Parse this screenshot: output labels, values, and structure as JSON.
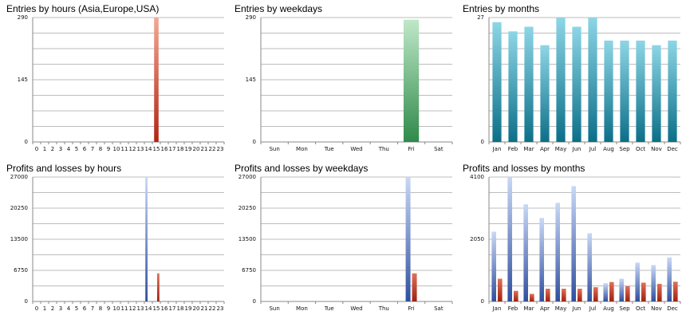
{
  "colors": {
    "grid": "#bdbdbd",
    "entries_hours": [
      "#f3a895",
      "#b32311"
    ],
    "entries_weekdays": [
      "#bfe8c8",
      "#2f8a4a"
    ],
    "entries_months": [
      "#8dd6e6",
      "#0b6f88"
    ],
    "profit": [
      "#c9d8f6",
      "#2f4f9e"
    ],
    "loss": [
      "#e0705a",
      "#a0210f"
    ]
  },
  "chart_data": [
    {
      "id": "entries-hours",
      "type": "bar",
      "title": "Entries by hours (Asia,Europe,USA)",
      "categories": [
        "0",
        "1",
        "2",
        "3",
        "4",
        "5",
        "6",
        "7",
        "8",
        "9",
        "10",
        "11",
        "12",
        "13",
        "14",
        "15",
        "16",
        "17",
        "18",
        "19",
        "20",
        "21",
        "22",
        "23"
      ],
      "y_ticks": [
        "0",
        "145",
        "290"
      ],
      "ylim": [
        0,
        290
      ],
      "series": [
        {
          "values": [
            0,
            0,
            0,
            0,
            0,
            0,
            0,
            0,
            0,
            0,
            0,
            0,
            0,
            0,
            0,
            290,
            0,
            0,
            0,
            0,
            0,
            0,
            0,
            0
          ],
          "color_key": "entries_hours"
        }
      ]
    },
    {
      "id": "entries-weekdays",
      "type": "bar",
      "title": "Entries by weekdays",
      "categories": [
        "Sun",
        "Mon",
        "Tue",
        "Wed",
        "Thu",
        "Fri",
        "Sat"
      ],
      "y_ticks": [
        "0",
        "145",
        "290"
      ],
      "ylim": [
        0,
        290
      ],
      "series": [
        {
          "values": [
            0,
            0,
            0,
            0,
            0,
            285,
            0
          ],
          "color_key": "entries_weekdays"
        }
      ]
    },
    {
      "id": "entries-months",
      "type": "bar",
      "title": "Entries by months",
      "categories": [
        "Jan",
        "Feb",
        "Mar",
        "Apr",
        "May",
        "Jun",
        "Jul",
        "Aug",
        "Sep",
        "Oct",
        "Nov",
        "Dec"
      ],
      "y_ticks": [
        "0",
        "27"
      ],
      "ylim": [
        0,
        27
      ],
      "series": [
        {
          "values": [
            26,
            24,
            25,
            21,
            27,
            25,
            27,
            22,
            22,
            22,
            21,
            22
          ],
          "color_key": "entries_months"
        }
      ]
    },
    {
      "id": "pl-hours",
      "type": "bar",
      "title": "Profits and losses by hours",
      "categories": [
        "0",
        "1",
        "2",
        "3",
        "4",
        "5",
        "6",
        "7",
        "8",
        "9",
        "10",
        "11",
        "12",
        "13",
        "14",
        "15",
        "16",
        "17",
        "18",
        "19",
        "20",
        "21",
        "22",
        "23"
      ],
      "y_ticks": [
        "0",
        "6750",
        "13500",
        "20250",
        "27000"
      ],
      "ylim": [
        0,
        27000
      ],
      "series": [
        {
          "values": [
            0,
            0,
            0,
            0,
            0,
            0,
            0,
            0,
            0,
            0,
            0,
            0,
            0,
            0,
            27000,
            0,
            0,
            0,
            0,
            0,
            0,
            0,
            0,
            0
          ],
          "color_key": "profit"
        },
        {
          "values": [
            0,
            0,
            0,
            0,
            0,
            0,
            0,
            0,
            0,
            0,
            0,
            0,
            0,
            0,
            0,
            6100,
            0,
            0,
            0,
            0,
            0,
            0,
            0,
            0
          ],
          "color_key": "loss"
        }
      ]
    },
    {
      "id": "pl-weekdays",
      "type": "bar",
      "title": "Profits and losses by weekdays",
      "categories": [
        "Sun",
        "Mon",
        "Tue",
        "Wed",
        "Thu",
        "Fri",
        "Sat"
      ],
      "y_ticks": [
        "0",
        "6750",
        "13500",
        "20250",
        "27000"
      ],
      "ylim": [
        0,
        27000
      ],
      "series": [
        {
          "values": [
            0,
            0,
            0,
            0,
            0,
            27000,
            0
          ],
          "color_key": "profit"
        },
        {
          "values": [
            0,
            0,
            0,
            0,
            0,
            6100,
            0
          ],
          "color_key": "loss"
        }
      ]
    },
    {
      "id": "pl-months",
      "type": "bar",
      "title": "Profits and losses by months",
      "categories": [
        "Jan",
        "Feb",
        "Mar",
        "Apr",
        "May",
        "Jun",
        "Jul",
        "Aug",
        "Sep",
        "Oct",
        "Nov",
        "Dec"
      ],
      "y_ticks": [
        "0",
        "2050",
        "4100"
      ],
      "ylim": [
        0,
        4100
      ],
      "series": [
        {
          "values": [
            2300,
            4100,
            3200,
            2750,
            3250,
            3800,
            2250,
            600,
            750,
            1280,
            1200,
            1450
          ],
          "color_key": "profit"
        },
        {
          "values": [
            750,
            350,
            250,
            420,
            420,
            420,
            470,
            640,
            500,
            620,
            580,
            650
          ],
          "color_key": "loss"
        }
      ]
    }
  ]
}
